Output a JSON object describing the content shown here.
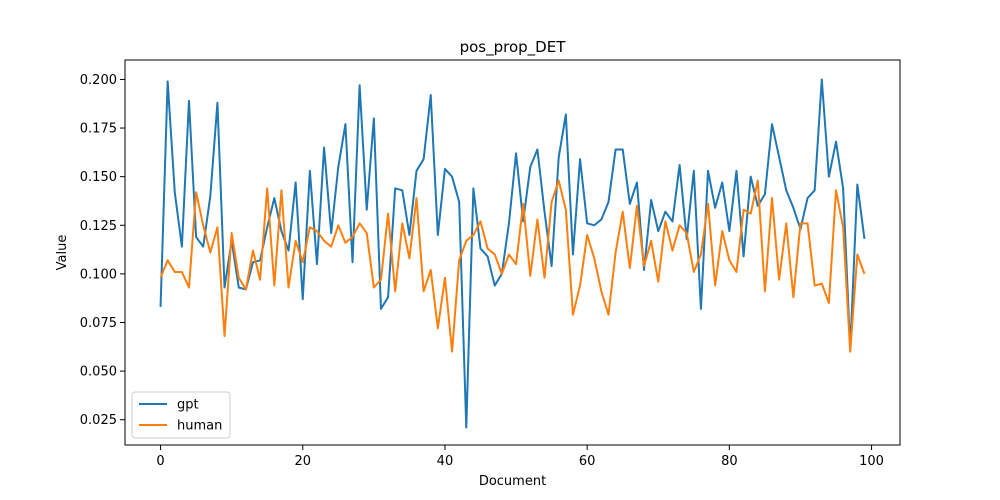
{
  "chart_data": {
    "type": "line",
    "title": "pos_prop_DET",
    "xlabel": "Document",
    "ylabel": "Value",
    "xlim": [
      -5,
      104
    ],
    "ylim": [
      0.012,
      0.21
    ],
    "xticks": [
      0,
      20,
      40,
      60,
      80,
      100
    ],
    "xtick_labels": [
      "0",
      "20",
      "40",
      "60",
      "80",
      "100"
    ],
    "yticks": [
      0.025,
      0.05,
      0.075,
      0.1,
      0.125,
      0.15,
      0.175,
      0.2
    ],
    "ytick_labels": [
      "0.025",
      "0.050",
      "0.075",
      "0.100",
      "0.125",
      "0.150",
      "0.175",
      "0.200"
    ],
    "grid": false,
    "legend_position": "lower-left",
    "series": [
      {
        "name": "gpt",
        "color": "#1f77b4",
        "values": [
          0.083,
          0.199,
          0.142,
          0.114,
          0.189,
          0.119,
          0.114,
          0.14,
          0.188,
          0.093,
          0.117,
          0.093,
          0.092,
          0.106,
          0.107,
          0.124,
          0.139,
          0.122,
          0.112,
          0.147,
          0.087,
          0.153,
          0.105,
          0.165,
          0.121,
          0.155,
          0.177,
          0.106,
          0.197,
          0.133,
          0.18,
          0.082,
          0.088,
          0.144,
          0.143,
          0.12,
          0.153,
          0.159,
          0.192,
          0.12,
          0.154,
          0.15,
          0.137,
          0.021,
          0.144,
          0.113,
          0.109,
          0.094,
          0.1,
          0.126,
          0.162,
          0.127,
          0.155,
          0.164,
          0.132,
          0.104,
          0.16,
          0.182,
          0.11,
          0.159,
          0.126,
          0.125,
          0.128,
          0.137,
          0.164,
          0.164,
          0.136,
          0.147,
          0.102,
          0.138,
          0.122,
          0.132,
          0.127,
          0.156,
          0.118,
          0.153,
          0.082,
          0.153,
          0.134,
          0.147,
          0.122,
          0.153,
          0.109,
          0.15,
          0.135,
          0.141,
          0.177,
          0.16,
          0.143,
          0.134,
          0.123,
          0.139,
          0.143,
          0.2,
          0.15,
          0.168,
          0.144,
          0.061,
          0.146,
          0.118
        ]
      },
      {
        "name": "human",
        "color": "#ff7f0e",
        "values": [
          0.098,
          0.107,
          0.101,
          0.101,
          0.093,
          0.142,
          0.125,
          0.111,
          0.124,
          0.068,
          0.121,
          0.098,
          0.092,
          0.112,
          0.097,
          0.144,
          0.094,
          0.143,
          0.093,
          0.117,
          0.106,
          0.124,
          0.122,
          0.117,
          0.114,
          0.125,
          0.116,
          0.119,
          0.126,
          0.121,
          0.093,
          0.097,
          0.131,
          0.091,
          0.126,
          0.108,
          0.139,
          0.091,
          0.102,
          0.072,
          0.098,
          0.06,
          0.107,
          0.117,
          0.12,
          0.127,
          0.113,
          0.11,
          0.1,
          0.11,
          0.105,
          0.136,
          0.099,
          0.128,
          0.098,
          0.137,
          0.148,
          0.133,
          0.079,
          0.094,
          0.12,
          0.108,
          0.091,
          0.079,
          0.111,
          0.132,
          0.103,
          0.135,
          0.104,
          0.117,
          0.096,
          0.127,
          0.112,
          0.125,
          0.121,
          0.101,
          0.11,
          0.136,
          0.094,
          0.122,
          0.107,
          0.101,
          0.133,
          0.131,
          0.148,
          0.091,
          0.139,
          0.097,
          0.126,
          0.088,
          0.126,
          0.126,
          0.094,
          0.095,
          0.085,
          0.143,
          0.124,
          0.06,
          0.11,
          0.1
        ]
      }
    ]
  }
}
